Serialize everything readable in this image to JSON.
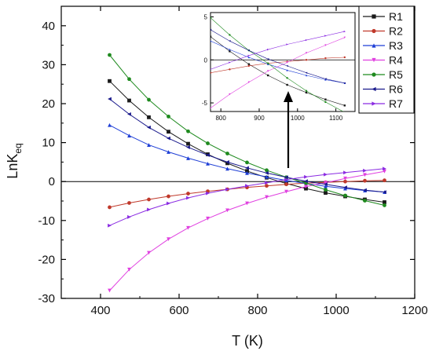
{
  "chart_data": {
    "type": "line",
    "xlabel": "T (K)",
    "ylabel_main": "LnK",
    "ylabel_sub": "eq",
    "xlim": [
      300,
      1200
    ],
    "ylim": [
      -30,
      45
    ],
    "xticks": [
      400,
      600,
      800,
      1000,
      1200
    ],
    "yticks": [
      -30,
      -20,
      -10,
      0,
      10,
      20,
      30,
      40
    ],
    "x": [
      423,
      473,
      523,
      573,
      623,
      673,
      723,
      773,
      823,
      873,
      923,
      973,
      1023,
      1073,
      1123
    ],
    "series": [
      {
        "name": "R1",
        "color": "#1a1a1a",
        "marker": "square",
        "values": [
          25.8,
          20.8,
          16.5,
          12.8,
          9.7,
          7.0,
          4.7,
          2.7,
          1.0,
          -0.5,
          -1.8,
          -2.9,
          -3.8,
          -4.6,
          -5.3
        ]
      },
      {
        "name": "R2",
        "color": "#c0392b",
        "marker": "circle",
        "values": [
          -6.6,
          -5.5,
          -4.6,
          -3.8,
          -3.1,
          -2.5,
          -2.0,
          -1.5,
          -1.1,
          -0.7,
          -0.4,
          -0.2,
          0.0,
          0.2,
          0.3
        ]
      },
      {
        "name": "R3",
        "color": "#1f3fd6",
        "marker": "triangle-up",
        "values": [
          14.5,
          11.8,
          9.4,
          7.6,
          6.0,
          4.6,
          3.3,
          2.2,
          1.2,
          0.3,
          -0.5,
          -1.2,
          -1.8,
          -2.3,
          -2.7
        ]
      },
      {
        "name": "R4",
        "color": "#e040e0",
        "marker": "triangle-down",
        "values": [
          -28.0,
          -22.6,
          -18.3,
          -14.8,
          -11.9,
          -9.5,
          -7.4,
          -5.6,
          -4.0,
          -2.6,
          -1.3,
          -0.3,
          0.8,
          1.7,
          2.6
        ]
      },
      {
        "name": "R5",
        "color": "#1e8a1e",
        "marker": "circle",
        "values": [
          32.5,
          26.3,
          21.0,
          16.7,
          12.9,
          9.8,
          7.2,
          4.9,
          2.9,
          1.1,
          -0.4,
          -2.1,
          -3.6,
          -4.9,
          -6.1
        ]
      },
      {
        "name": "R6",
        "color": "#1a1a8c",
        "marker": "triangle-left",
        "values": [
          21.2,
          17.3,
          13.9,
          11.1,
          8.8,
          6.8,
          5.0,
          3.5,
          2.2,
          1.1,
          0.1,
          -0.7,
          -1.5,
          -2.2,
          -2.7
        ]
      },
      {
        "name": "R7",
        "color": "#8a2be2",
        "marker": "triangle-right",
        "values": [
          -11.3,
          -9.1,
          -7.2,
          -5.6,
          -4.2,
          -3.0,
          -2.0,
          -1.1,
          -0.3,
          0.5,
          1.2,
          1.8,
          2.3,
          2.8,
          3.3
        ]
      }
    ],
    "inset": {
      "xlim": [
        773,
        1150
      ],
      "ylim": [
        -6,
        5.5
      ],
      "xticks": [
        800,
        900,
        1000,
        1100
      ],
      "yticks": [
        -5,
        0,
        5
      ]
    },
    "legend_position": "top-right",
    "arrow_annotation": "pointing from main plot up to inset"
  }
}
